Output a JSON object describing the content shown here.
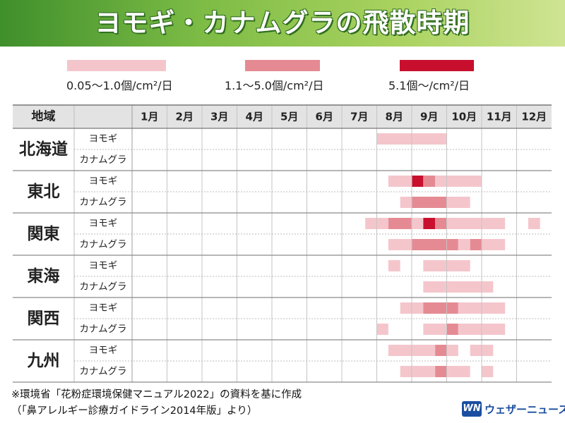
{
  "title": "ヨモギ・カナムグラの飛散時期",
  "legend": [
    {
      "label": "0.05〜1.0個/cm²/日",
      "color": "#f4c6cc"
    },
    {
      "label": "1.1〜5.0個/cm²/日",
      "color": "#e58a93"
    },
    {
      "label": "5.1個〜/cm²/日",
      "color": "#c8102e"
    }
  ],
  "footnote": {
    "line1": "※環境省「花粉症環境保健マニュアル2022」の資料を基に作成",
    "line2": "（「鼻アレルギー診療ガイドライン2014年版」より）"
  },
  "logo": {
    "mark": "WN",
    "text": "ウェザーニュース"
  },
  "chart_data": {
    "type": "table",
    "title": "ヨモギ・カナムグラの飛散時期",
    "region_header": "地域",
    "months": [
      "1月",
      "2月",
      "3月",
      "4月",
      "5月",
      "6月",
      "7月",
      "8月",
      "9月",
      "10月",
      "11月",
      "12月"
    ],
    "level_note": "levels: 1 = 0.05〜1.0個/cm²/日, 2 = 1.1〜5.0個/cm²/日, 3 = 5.1個〜/cm²/日; each segment is [start_month, end_month, level] where month 8.0 = start of August and 8.5 = mid-August",
    "regions": [
      {
        "name": "北海道",
        "rows": [
          {
            "plant": "ヨモギ",
            "segments": [
              [
                8.0,
                10.0,
                1
              ]
            ]
          },
          {
            "plant": "カナムグラ",
            "segments": []
          }
        ]
      },
      {
        "name": "東北",
        "rows": [
          {
            "plant": "ヨモギ",
            "segments": [
              [
                8.33,
                9.0,
                1
              ],
              [
                9.0,
                9.33,
                3
              ],
              [
                9.33,
                9.67,
                2
              ],
              [
                9.67,
                11.0,
                1
              ]
            ]
          },
          {
            "plant": "カナムグラ",
            "segments": [
              [
                8.67,
                9.0,
                1
              ],
              [
                9.0,
                10.0,
                2
              ],
              [
                10.0,
                10.67,
                1
              ]
            ]
          }
        ]
      },
      {
        "name": "関東",
        "rows": [
          {
            "plant": "ヨモギ",
            "segments": [
              [
                7.67,
                8.33,
                1
              ],
              [
                8.33,
                9.0,
                2
              ],
              [
                9.0,
                9.33,
                1
              ],
              [
                9.33,
                9.67,
                3
              ],
              [
                9.67,
                10.0,
                2
              ],
              [
                10.0,
                11.67,
                1
              ],
              [
                12.33,
                12.67,
                1
              ]
            ]
          },
          {
            "plant": "カナムグラ",
            "segments": [
              [
                8.33,
                9.0,
                1
              ],
              [
                9.0,
                10.33,
                2
              ],
              [
                10.33,
                10.67,
                1
              ],
              [
                10.67,
                11.0,
                2
              ],
              [
                11.0,
                11.67,
                1
              ]
            ]
          }
        ]
      },
      {
        "name": "東海",
        "rows": [
          {
            "plant": "ヨモギ",
            "segments": [
              [
                8.33,
                8.67,
                1
              ],
              [
                9.33,
                10.67,
                1
              ]
            ]
          },
          {
            "plant": "カナムグラ",
            "segments": [
              [
                9.33,
                11.33,
                1
              ]
            ]
          }
        ]
      },
      {
        "name": "関西",
        "rows": [
          {
            "plant": "ヨモギ",
            "segments": [
              [
                8.67,
                9.33,
                1
              ],
              [
                9.33,
                10.33,
                2
              ],
              [
                10.33,
                11.67,
                1
              ]
            ]
          },
          {
            "plant": "カナムグラ",
            "segments": [
              [
                8.0,
                8.33,
                1
              ],
              [
                9.33,
                10.0,
                1
              ],
              [
                10.0,
                10.33,
                2
              ],
              [
                10.33,
                11.67,
                1
              ]
            ]
          }
        ]
      },
      {
        "name": "九州",
        "rows": [
          {
            "plant": "ヨモギ",
            "segments": [
              [
                8.33,
                9.67,
                1
              ],
              [
                9.67,
                10.0,
                2
              ],
              [
                10.0,
                10.33,
                1
              ],
              [
                10.67,
                11.33,
                1
              ]
            ]
          },
          {
            "plant": "カナムグラ",
            "segments": [
              [
                8.67,
                9.67,
                1
              ],
              [
                9.67,
                10.0,
                2
              ],
              [
                10.0,
                10.67,
                1
              ],
              [
                11.0,
                11.33,
                1
              ]
            ]
          }
        ]
      }
    ]
  }
}
